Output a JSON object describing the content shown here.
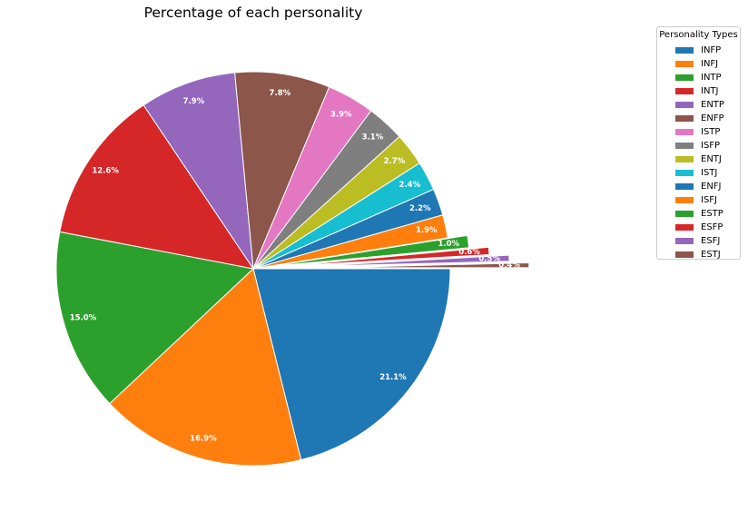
{
  "chart_data": {
    "type": "pie",
    "title": "Percentage of each personality",
    "legend_title": "Personality Types",
    "legend_position": "upper-right-outside",
    "categories": [
      "INFP",
      "INFJ",
      "INTP",
      "INTJ",
      "ENTP",
      "ENFP",
      "ISTP",
      "ISFP",
      "ENTJ",
      "ISTJ",
      "ENFJ",
      "ISFJ",
      "ESTP",
      "ESFP",
      "ESFJ",
      "ESTJ"
    ],
    "values": [
      21.1,
      16.9,
      15.0,
      12.6,
      7.9,
      7.8,
      3.9,
      3.1,
      2.7,
      2.4,
      2.2,
      1.9,
      1.0,
      0.6,
      0.5,
      0.4
    ],
    "labels": [
      "21.1%",
      "16.9%",
      "15.0%",
      "12.6%",
      "7.9%",
      "7.8%",
      "3.9%",
      "3.1%",
      "2.7%",
      "2.4%",
      "2.2%",
      "1.9%",
      "1.0%",
      "0.6%",
      "0.5%",
      "0.4%"
    ],
    "explode": [
      0,
      0,
      0,
      0,
      0,
      0,
      0,
      0,
      0,
      0,
      0,
      0,
      0.1,
      0.2,
      0.3,
      0.4
    ],
    "start_angle_deg": 0,
    "direction": "clockwise",
    "colors": [
      "#1f77b4",
      "#ff7f0e",
      "#2ca02c",
      "#d62728",
      "#9467bd",
      "#8c564b",
      "#e377c2",
      "#7f7f7f",
      "#bcbd22",
      "#17becf",
      "#1f77b4",
      "#ff7f0e",
      "#2ca02c",
      "#d62728",
      "#9467bd",
      "#8c564b"
    ]
  }
}
